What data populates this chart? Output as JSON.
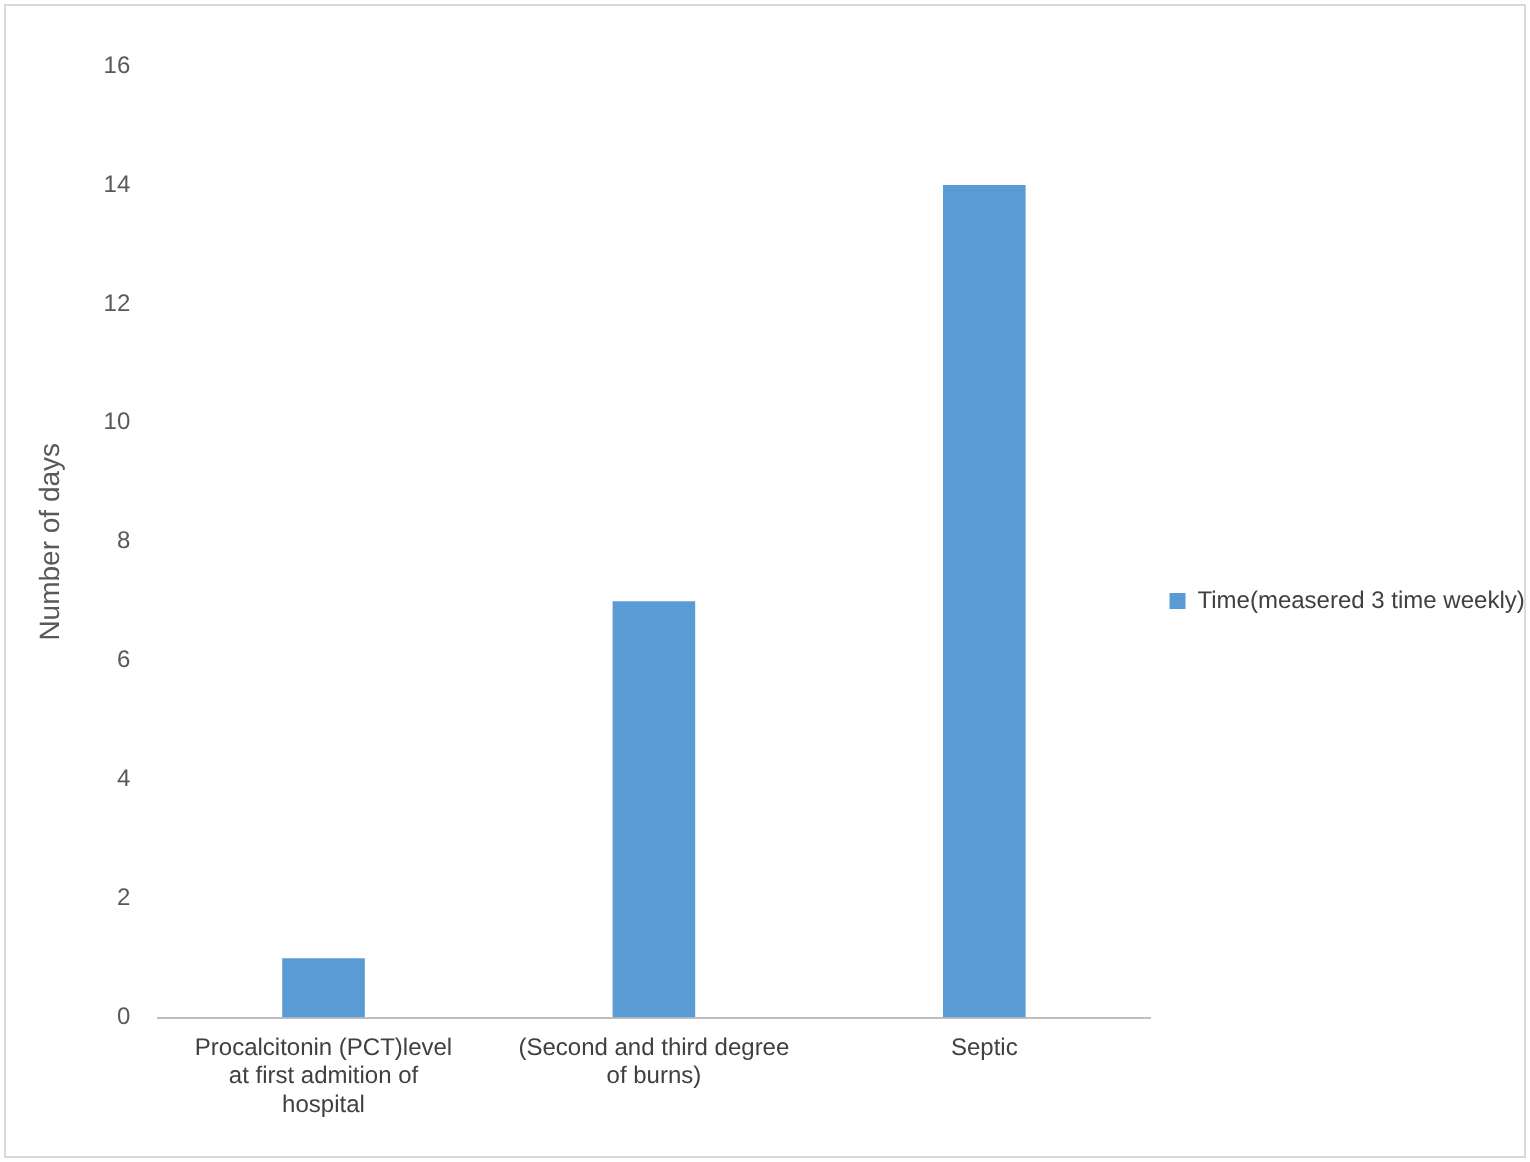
{
  "chart_data": {
    "type": "bar",
    "ylabel": "Number of days",
    "categories": [
      "Procalcitonin (PCT)level at first admition of hospital",
      "(Second and third degree of burns)",
      "Septic"
    ],
    "series": [
      {
        "name": "Time(measered 3 time weekly)",
        "color": "#5b9bd5",
        "values": [
          1,
          7,
          14
        ]
      }
    ],
    "ylim": [
      0,
      16
    ],
    "yticks": [
      0,
      2,
      4,
      6,
      8,
      10,
      12,
      14,
      16
    ],
    "grid": false,
    "legend": "right"
  }
}
